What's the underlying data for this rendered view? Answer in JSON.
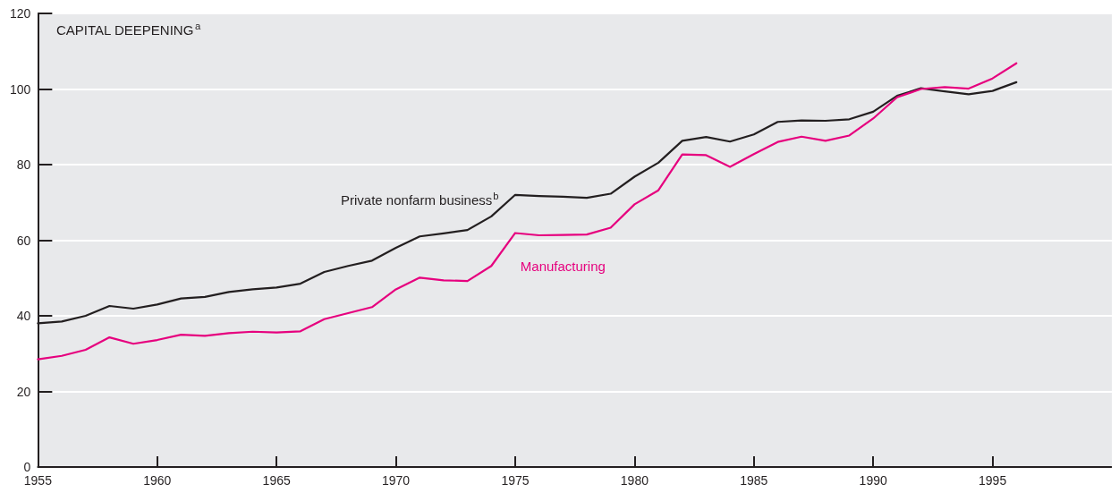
{
  "chart_data": {
    "type": "line",
    "title": "CAPITAL DEEPENING$^{a}$",
    "x": [
      1955,
      1956,
      1957,
      1958,
      1959,
      1960,
      1961,
      1962,
      1963,
      1964,
      1965,
      1966,
      1967,
      1968,
      1969,
      1970,
      1971,
      1972,
      1973,
      1974,
      1975,
      1976,
      1977,
      1978,
      1979,
      1980,
      1981,
      1982,
      1983,
      1984,
      1985,
      1986,
      1987,
      1988,
      1989,
      1990,
      1991,
      1992,
      1993,
      1994,
      1995,
      1996
    ],
    "series": [
      {
        "name": "Private nonfarm business$^{b}$",
        "color": "#231f20",
        "values": [
          38,
          38.5,
          40,
          42.6,
          41.9,
          43,
          44.6,
          45,
          46.3,
          47,
          47.5,
          48.5,
          51.6,
          53.2,
          54.6,
          58,
          61,
          61.8,
          62.7,
          66.3,
          72,
          71.7,
          71.5,
          71.2,
          72.3,
          76.8,
          80.5,
          86.3,
          87.3,
          86.1,
          88,
          91.3,
          91.7,
          91.6,
          92,
          94,
          98.2,
          100.2,
          99.4,
          98.6,
          99.5,
          101.8
        ]
      },
      {
        "name": "Manufacturing",
        "color": "#e6007e",
        "values": [
          28.5,
          29.4,
          31,
          34.3,
          32.6,
          33.6,
          35,
          34.7,
          35.4,
          35.8,
          35.6,
          35.9,
          39.1,
          40.7,
          42.3,
          47,
          50.1,
          49.4,
          49.2,
          53.2,
          61.9,
          61.3,
          61.4,
          61.5,
          63.3,
          69.5,
          73.2,
          82.7,
          82.5,
          79.4,
          82.8,
          86,
          87.4,
          86.3,
          87.7,
          92.2,
          97.8,
          100,
          100.5,
          100.1,
          102.8,
          106.8
        ]
      }
    ],
    "xlim": [
      1955,
      2000
    ],
    "xticks": [
      1955,
      1960,
      1965,
      1970,
      1975,
      1980,
      1985,
      1990,
      1995
    ],
    "ylim": [
      0,
      120
    ],
    "yticks": [
      0,
      20,
      40,
      60,
      80,
      100,
      120
    ],
    "grid": "y",
    "legend": false,
    "marker": "none",
    "line_style": "solid"
  }
}
